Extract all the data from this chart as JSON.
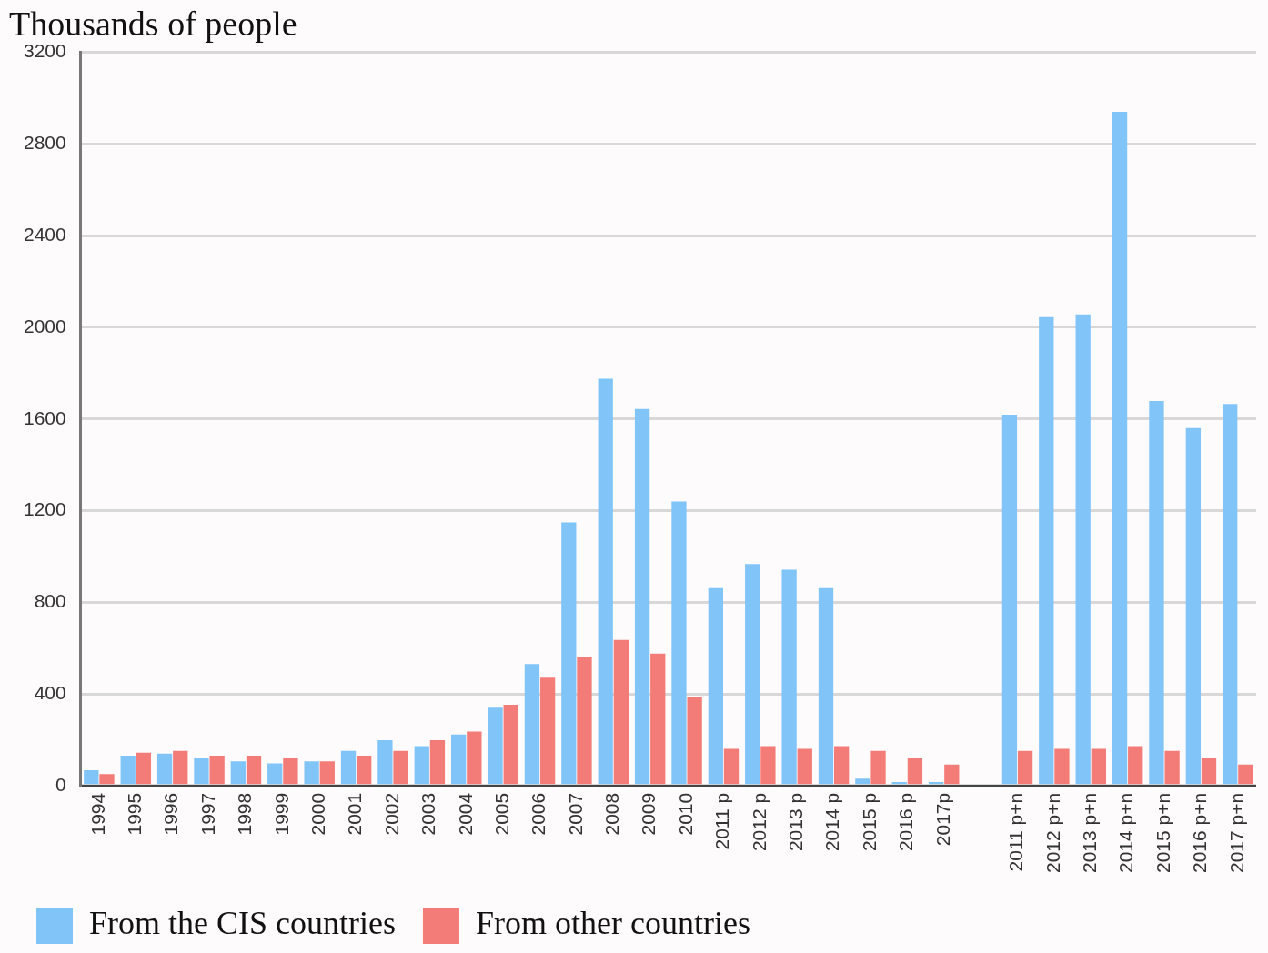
{
  "chart_data": {
    "type": "bar",
    "title": "Thousands of people",
    "categories": [
      "1994",
      "1995",
      "1996",
      "1997",
      "1998",
      "1999",
      "2000",
      "2001",
      "2002",
      "2003",
      "2004",
      "2005",
      "2006",
      "2007",
      "2008",
      "2009",
      "2010",
      "2011 p",
      "2012 p",
      "2013 p",
      "2014 p",
      "2015 p",
      "2016 p",
      "2017p",
      null,
      "2011 p+n",
      "2012 p+n",
      "2013 p+n",
      "2014 p+n",
      "2015 p+n",
      "2016 p+n",
      "2017 p+n"
    ],
    "series": [
      {
        "name": "From the CIS countries",
        "color": "#80c4f8",
        "values": [
          67,
          130,
          139,
          118,
          105,
          97,
          105,
          151,
          198,
          172,
          223,
          340,
          530,
          1148,
          1775,
          1644,
          1240,
          862,
          967,
          942,
          862,
          30,
          15,
          15,
          null,
          1619,
          2044,
          2056,
          2940,
          1678,
          1560,
          1665
        ]
      },
      {
        "name": "From other countries",
        "color": "#f47c78",
        "values": [
          50,
          143,
          151,
          130,
          130,
          118,
          105,
          130,
          151,
          198,
          235,
          353,
          471,
          563,
          635,
          576,
          387,
          160,
          172,
          160,
          172,
          151,
          118,
          92,
          null,
          151,
          160,
          160,
          172,
          151,
          118,
          92
        ]
      }
    ],
    "ylim": [
      0,
      3200
    ],
    "yticks": [
      0,
      400,
      800,
      1200,
      1600,
      2000,
      2400,
      2800,
      3200
    ],
    "grid": "y",
    "legend": "bottom left"
  }
}
